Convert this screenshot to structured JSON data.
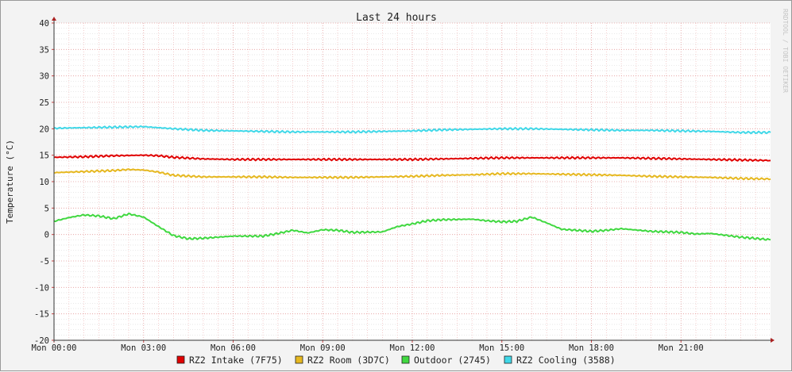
{
  "chart_data": {
    "type": "line",
    "title": "Last 24 hours",
    "ylabel": "Temperature (°C)",
    "watermark": "RRDTOOL / TOBI OETIKER",
    "ylim": [
      -20,
      40
    ],
    "yticks": [
      40,
      35,
      30,
      25,
      20,
      15,
      10,
      5,
      0,
      -5,
      -10,
      -15,
      -20
    ],
    "xlim_hours": [
      0,
      24
    ],
    "xticks": [
      {
        "hour": 0,
        "label": "Mon 00:00"
      },
      {
        "hour": 3,
        "label": "Mon 03:00"
      },
      {
        "hour": 6,
        "label": "Mon 06:00"
      },
      {
        "hour": 9,
        "label": "Mon 09:00"
      },
      {
        "hour": 12,
        "label": "Mon 12:00"
      },
      {
        "hour": 15,
        "label": "Mon 15:00"
      },
      {
        "hour": 18,
        "label": "Mon 18:00"
      },
      {
        "hour": 21,
        "label": "Mon 21:00"
      }
    ],
    "grid": true,
    "legend_position": "bottom",
    "series": [
      {
        "name": "RZ2 Intake (7F75)",
        "color": "#e00000",
        "points": [
          [
            0,
            14.6
          ],
          [
            1,
            14.7
          ],
          [
            2,
            14.9
          ],
          [
            3,
            15.0
          ],
          [
            3.5,
            14.9
          ],
          [
            4,
            14.6
          ],
          [
            5,
            14.3
          ],
          [
            6,
            14.2
          ],
          [
            7,
            14.2
          ],
          [
            8,
            14.2
          ],
          [
            9,
            14.2
          ],
          [
            10,
            14.2
          ],
          [
            11,
            14.2
          ],
          [
            12,
            14.2
          ],
          [
            13,
            14.3
          ],
          [
            14,
            14.4
          ],
          [
            15,
            14.5
          ],
          [
            16,
            14.5
          ],
          [
            17,
            14.5
          ],
          [
            18,
            14.5
          ],
          [
            19,
            14.5
          ],
          [
            20,
            14.4
          ],
          [
            21,
            14.3
          ],
          [
            22,
            14.2
          ],
          [
            23,
            14.1
          ],
          [
            24,
            14.0
          ]
        ]
      },
      {
        "name": "RZ2 Room (3D7C)",
        "color": "#e6b820",
        "points": [
          [
            0,
            11.7
          ],
          [
            1,
            11.9
          ],
          [
            2,
            12.1
          ],
          [
            2.5,
            12.3
          ],
          [
            3,
            12.2
          ],
          [
            3.5,
            11.8
          ],
          [
            4,
            11.2
          ],
          [
            5,
            10.9
          ],
          [
            6,
            10.9
          ],
          [
            7,
            10.9
          ],
          [
            8,
            10.8
          ],
          [
            9,
            10.8
          ],
          [
            10,
            10.8
          ],
          [
            11,
            10.9
          ],
          [
            12,
            11.0
          ],
          [
            13,
            11.2
          ],
          [
            14,
            11.3
          ],
          [
            15,
            11.5
          ],
          [
            16,
            11.5
          ],
          [
            17,
            11.4
          ],
          [
            18,
            11.3
          ],
          [
            19,
            11.2
          ],
          [
            20,
            11.0
          ],
          [
            21,
            10.9
          ],
          [
            22,
            10.8
          ],
          [
            23,
            10.6
          ],
          [
            24,
            10.5
          ]
        ]
      },
      {
        "name": "Outdoor (2745)",
        "color": "#40d840",
        "points": [
          [
            0,
            2.5
          ],
          [
            0.5,
            3.2
          ],
          [
            1,
            3.7
          ],
          [
            1.5,
            3.5
          ],
          [
            2,
            3.0
          ],
          [
            2.5,
            3.9
          ],
          [
            3,
            3.3
          ],
          [
            3.5,
            1.5
          ],
          [
            4,
            -0.2
          ],
          [
            4.5,
            -0.8
          ],
          [
            5,
            -0.7
          ],
          [
            5.5,
            -0.5
          ],
          [
            6,
            -0.3
          ],
          [
            7,
            -0.3
          ],
          [
            7.5,
            0.2
          ],
          [
            8,
            0.8
          ],
          [
            8.5,
            0.3
          ],
          [
            9,
            0.9
          ],
          [
            9.5,
            0.8
          ],
          [
            10,
            0.4
          ],
          [
            11,
            0.5
          ],
          [
            11.5,
            1.5
          ],
          [
            12,
            2.0
          ],
          [
            12.5,
            2.6
          ],
          [
            13,
            2.8
          ],
          [
            14,
            2.9
          ],
          [
            14.5,
            2.6
          ],
          [
            15,
            2.4
          ],
          [
            15.5,
            2.5
          ],
          [
            16,
            3.3
          ],
          [
            16.5,
            2.2
          ],
          [
            17,
            1.0
          ],
          [
            18,
            0.6
          ],
          [
            18.5,
            0.8
          ],
          [
            19,
            1.1
          ],
          [
            20,
            0.6
          ],
          [
            21,
            0.4
          ],
          [
            21.5,
            0.1
          ],
          [
            22,
            0.2
          ],
          [
            23,
            -0.5
          ],
          [
            24,
            -1.0
          ]
        ]
      },
      {
        "name": "RZ2 Cooling (3588)",
        "color": "#40d8e8",
        "points": [
          [
            0,
            20.1
          ],
          [
            1,
            20.2
          ],
          [
            2,
            20.3
          ],
          [
            3,
            20.4
          ],
          [
            4,
            20.0
          ],
          [
            5,
            19.7
          ],
          [
            6,
            19.6
          ],
          [
            7,
            19.5
          ],
          [
            8,
            19.4
          ],
          [
            9,
            19.4
          ],
          [
            10,
            19.4
          ],
          [
            11,
            19.5
          ],
          [
            12,
            19.6
          ],
          [
            13,
            19.8
          ],
          [
            14,
            19.9
          ],
          [
            15,
            20.0
          ],
          [
            16,
            20.0
          ],
          [
            17,
            19.9
          ],
          [
            18,
            19.8
          ],
          [
            19,
            19.7
          ],
          [
            20,
            19.7
          ],
          [
            21,
            19.6
          ],
          [
            22,
            19.5
          ],
          [
            23,
            19.3
          ],
          [
            24,
            19.3
          ]
        ]
      }
    ]
  }
}
